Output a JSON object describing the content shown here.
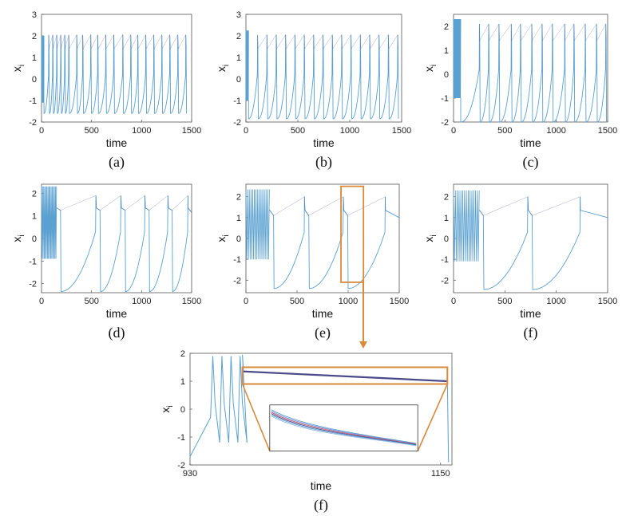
{
  "chart_data": [
    {
      "id": "a",
      "type": "line",
      "caption": "(a)",
      "xlabel": "time",
      "ylabel": "x",
      "ylabel_sub": "i",
      "xlim": [
        0,
        1500
      ],
      "ylim": [
        -2,
        3
      ],
      "xticks": [
        {
          "v": 0,
          "t": "0"
        },
        {
          "v": 500,
          "t": "500"
        },
        {
          "v": 1000,
          "t": "1000"
        },
        {
          "v": 1500,
          "t": "1500"
        }
      ],
      "yticks": [
        {
          "v": -2,
          "t": "-2"
        },
        {
          "v": -1,
          "t": "-1"
        },
        {
          "v": 0,
          "t": "0"
        },
        {
          "v": 1,
          "t": "1"
        },
        {
          "v": 2,
          "t": "2"
        },
        {
          "v": 3,
          "t": "3"
        }
      ],
      "dense_until": 25,
      "dense_lo": -1.1,
      "dense_hi": 2.0,
      "spikes": [
        70,
        110,
        150,
        190,
        230,
        270,
        350,
        410,
        490,
        560,
        640,
        720,
        810,
        890,
        960,
        1040,
        1120,
        1200,
        1280,
        1360,
        1440
      ],
      "spike_peak": 2.05,
      "spike_trough": -1.6,
      "plateau_start": 1.4,
      "plateau_end": 1.35,
      "overshoot": -1.9,
      "color": "#5aa0d0"
    },
    {
      "id": "b",
      "type": "line",
      "caption": "(b)",
      "xlabel": "time",
      "ylabel": "x",
      "ylabel_sub": "i",
      "xlim": [
        0,
        1500
      ],
      "ylim": [
        -2,
        3
      ],
      "xticks": [
        {
          "v": 0,
          "t": "0"
        },
        {
          "v": 500,
          "t": "500"
        },
        {
          "v": 1000,
          "t": "1000"
        },
        {
          "v": 1500,
          "t": "1500"
        }
      ],
      "yticks": [
        {
          "v": -2,
          "t": "-2"
        },
        {
          "v": -1,
          "t": "-1"
        },
        {
          "v": 0,
          "t": "0"
        },
        {
          "v": 1,
          "t": "1"
        },
        {
          "v": 2,
          "t": "2"
        },
        {
          "v": 3,
          "t": "3"
        }
      ],
      "dense_until": 25,
      "dense_lo": -1.0,
      "dense_hi": 2.25,
      "spikes": [
        110,
        200,
        290,
        380,
        470,
        560,
        650,
        740,
        830,
        920,
        1010,
        1100,
        1190,
        1280,
        1370,
        1460
      ],
      "spike_peak": 2.05,
      "spike_trough": -1.85,
      "plateau_start": 1.4,
      "plateau_end": 1.3,
      "overshoot": -1.95,
      "color": "#5aa0d0"
    },
    {
      "id": "c",
      "type": "line",
      "caption": "(c)",
      "xlabel": "time",
      "ylabel": "x",
      "ylabel_sub": "i",
      "xlim": [
        0,
        1500
      ],
      "ylim": [
        -2,
        2.5
      ],
      "xticks": [
        {
          "v": 0,
          "t": "0"
        },
        {
          "v": 500,
          "t": "500"
        },
        {
          "v": 1000,
          "t": "1000"
        },
        {
          "v": 1500,
          "t": "1500"
        }
      ],
      "yticks": [
        {
          "v": -2,
          "t": "-2"
        },
        {
          "v": -1,
          "t": "-1"
        },
        {
          "v": 0,
          "t": "0"
        },
        {
          "v": 1,
          "t": "1"
        },
        {
          "v": 2,
          "t": "2"
        }
      ],
      "dense_until": 70,
      "dense_lo": -1.0,
      "dense_hi": 2.3,
      "spikes": [
        250,
        340,
        440,
        560,
        650,
        760,
        860,
        960,
        1080,
        1170,
        1280,
        1390,
        1480
      ],
      "spike_peak": 2.1,
      "spike_trough": -2.0,
      "plateau_start": 1.4,
      "plateau_end": 1.3,
      "overshoot": -2.0,
      "color": "#5aa0d0"
    },
    {
      "id": "d",
      "type": "line",
      "caption": "(d)",
      "xlabel": "time",
      "ylabel": "x",
      "ylabel_sub": "i",
      "xlim": [
        0,
        1500
      ],
      "ylim": [
        -2.4,
        2.4
      ],
      "xticks": [
        {
          "v": 0,
          "t": "0"
        },
        {
          "v": 500,
          "t": "500"
        },
        {
          "v": 1000,
          "t": "1000"
        },
        {
          "v": 1500,
          "t": "1500"
        }
      ],
      "yticks": [
        {
          "v": -2,
          "t": "-2"
        },
        {
          "v": -1,
          "t": "-1"
        },
        {
          "v": 0,
          "t": "0"
        },
        {
          "v": 1,
          "t": "1"
        },
        {
          "v": 2,
          "t": "2"
        }
      ],
      "dense_until": 150,
      "dense_lo": -0.9,
      "dense_hi": 2.3,
      "spikes": [
        540,
        790,
        1030,
        1260,
        1460
      ],
      "spike_peak": 1.9,
      "spike_trough": -2.3,
      "plateau_start": 1.35,
      "plateau_end": 1.15,
      "overshoot": -2.35,
      "color": "#5aa0d0"
    },
    {
      "id": "e",
      "type": "line",
      "caption": "(e)",
      "xlabel": "time",
      "ylabel": "x",
      "ylabel_sub": "i",
      "xlim": [
        0,
        1500
      ],
      "ylim": [
        -2.6,
        2.6
      ],
      "xticks": [
        {
          "v": 0,
          "t": "0"
        },
        {
          "v": 500,
          "t": "500"
        },
        {
          "v": 1000,
          "t": "1000"
        },
        {
          "v": 1500,
          "t": "1500"
        }
      ],
      "yticks": [
        {
          "v": -2,
          "t": "-2"
        },
        {
          "v": -1,
          "t": "-1"
        },
        {
          "v": 0,
          "t": "0"
        },
        {
          "v": 1,
          "t": "1"
        },
        {
          "v": 2,
          "t": "2"
        }
      ],
      "dense_until": 230,
      "dense_lo": -1.0,
      "dense_hi": 2.35,
      "spikes": [
        570,
        950,
        1360
      ],
      "spike_peak": 2.0,
      "spike_trough": -2.35,
      "plateau_start": 1.35,
      "plateau_end": 1.0,
      "overshoot": -2.4,
      "color": "#5aa0d0",
      "highlight_box": {
        "x0": 930,
        "x1": 1150,
        "y0": -2.1,
        "y1": 2.5
      }
    },
    {
      "id": "f",
      "type": "line",
      "caption": "(f)",
      "xlabel": "time",
      "ylabel": "x",
      "ylabel_sub": "i",
      "xlim": [
        0,
        1500
      ],
      "ylim": [
        -2.6,
        2.6
      ],
      "xticks": [
        {
          "v": 0,
          "t": "0"
        },
        {
          "v": 500,
          "t": "500"
        },
        {
          "v": 1000,
          "t": "1000"
        },
        {
          "v": 1500,
          "t": "1500"
        }
      ],
      "yticks": [
        {
          "v": -2,
          "t": "-2"
        },
        {
          "v": -1,
          "t": "-1"
        },
        {
          "v": 0,
          "t": "0"
        },
        {
          "v": 1,
          "t": "1"
        },
        {
          "v": 2,
          "t": "2"
        }
      ],
      "dense_until": 250,
      "dense_lo": -1.1,
      "dense_hi": 2.3,
      "spikes": [
        720,
        1230
      ],
      "spike_peak": 2.0,
      "spike_trough": -2.4,
      "plateau_start": 1.35,
      "plateau_end": 1.0,
      "overshoot": -2.45,
      "color": "#5aa0d0"
    },
    {
      "id": "g",
      "type": "line",
      "caption": "(f)",
      "xlabel": "time",
      "ylabel": "x",
      "ylabel_sub": "i",
      "xlim": [
        930,
        1160
      ],
      "ylim": [
        -2,
        2
      ],
      "xticks": [
        {
          "v": 930,
          "t": "930"
        },
        {
          "v": 1150,
          "t": "1150"
        }
      ],
      "yticks": [
        {
          "v": -2,
          "t": "-2"
        },
        {
          "v": -1,
          "t": "-1"
        },
        {
          "v": 0,
          "t": "0"
        },
        {
          "v": 1,
          "t": "1"
        },
        {
          "v": 2,
          "t": "2"
        }
      ],
      "burst_start": 930,
      "burst_start_value": -1.7,
      "burst_spikes": [
        950,
        958,
        966,
        974
      ],
      "burst_peak": 1.9,
      "burst_trough": -1.2,
      "plateau_from": 976,
      "plateau_to": 1156,
      "plateau_start": 1.35,
      "plateau_end": 1.0,
      "final_drop": 1157,
      "color": "#5aa0d0",
      "zoom_box": {
        "x0": 976,
        "x1": 1156,
        "y0": 0.9,
        "y1": 1.5
      },
      "inset": {
        "x0": 1000,
        "x1": 1130,
        "y0": -1.5,
        "y1": 0.15,
        "curves": 6
      }
    }
  ],
  "colors": {
    "annotation": "#d98a3a",
    "trace": "#5aa0d0",
    "trace_dark": "#4a4a8a",
    "axis": "#333333"
  }
}
